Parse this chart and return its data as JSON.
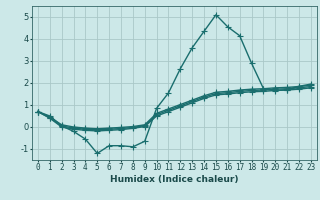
{
  "title": "",
  "xlabel": "Humidex (Indice chaleur)",
  "ylabel": "",
  "xlim": [
    -0.5,
    23.5
  ],
  "ylim": [
    -1.5,
    5.5
  ],
  "xticks": [
    0,
    1,
    2,
    3,
    4,
    5,
    6,
    7,
    8,
    9,
    10,
    11,
    12,
    13,
    14,
    15,
    16,
    17,
    18,
    19,
    20,
    21,
    22,
    23
  ],
  "yticks": [
    -1,
    0,
    1,
    2,
    3,
    4,
    5
  ],
  "background_color": "#cce8e8",
  "grid_color": "#aac8c8",
  "line_color": "#1a6e6e",
  "line_width": 1.0,
  "marker": "+",
  "marker_size": 4,
  "marker_edge_width": 0.8,
  "lines": [
    {
      "x": [
        0,
        1,
        2,
        3,
        4,
        5,
        6,
        7,
        8,
        9,
        10,
        11,
        12,
        13,
        14,
        15,
        16,
        17,
        18,
        19,
        20,
        21,
        22,
        23
      ],
      "y": [
        0.7,
        0.5,
        0.05,
        -0.2,
        -0.55,
        -1.2,
        -0.85,
        -0.85,
        -0.9,
        -0.65,
        0.85,
        1.55,
        2.65,
        3.6,
        4.35,
        5.1,
        4.55,
        4.15,
        2.9,
        1.75,
        1.65,
        1.7,
        1.85,
        1.95
      ]
    },
    {
      "x": [
        0,
        1,
        2,
        3,
        4,
        5,
        6,
        7,
        8,
        9,
        10,
        11,
        12,
        13,
        14,
        15,
        16,
        17,
        18,
        19,
        20,
        21,
        22,
        23
      ],
      "y": [
        0.7,
        0.45,
        0.1,
        0.0,
        -0.05,
        -0.08,
        -0.05,
        -0.02,
        0.02,
        0.1,
        0.62,
        0.82,
        1.02,
        1.22,
        1.42,
        1.58,
        1.62,
        1.68,
        1.72,
        1.74,
        1.78,
        1.8,
        1.84,
        1.9
      ]
    },
    {
      "x": [
        0,
        1,
        2,
        3,
        4,
        5,
        6,
        7,
        8,
        9,
        10,
        11,
        12,
        13,
        14,
        15,
        16,
        17,
        18,
        19,
        20,
        21,
        22,
        23
      ],
      "y": [
        0.7,
        0.42,
        0.05,
        -0.05,
        -0.1,
        -0.13,
        -0.1,
        -0.07,
        -0.02,
        0.06,
        0.56,
        0.76,
        0.96,
        1.16,
        1.36,
        1.52,
        1.56,
        1.62,
        1.66,
        1.68,
        1.72,
        1.74,
        1.78,
        1.84
      ]
    },
    {
      "x": [
        0,
        1,
        2,
        3,
        4,
        5,
        6,
        7,
        8,
        9,
        10,
        11,
        12,
        13,
        14,
        15,
        16,
        17,
        18,
        19,
        20,
        21,
        22,
        23
      ],
      "y": [
        0.7,
        0.4,
        0.0,
        -0.1,
        -0.15,
        -0.18,
        -0.15,
        -0.12,
        -0.06,
        0.02,
        0.5,
        0.7,
        0.9,
        1.1,
        1.3,
        1.46,
        1.5,
        1.56,
        1.6,
        1.62,
        1.66,
        1.68,
        1.72,
        1.78
      ]
    }
  ]
}
